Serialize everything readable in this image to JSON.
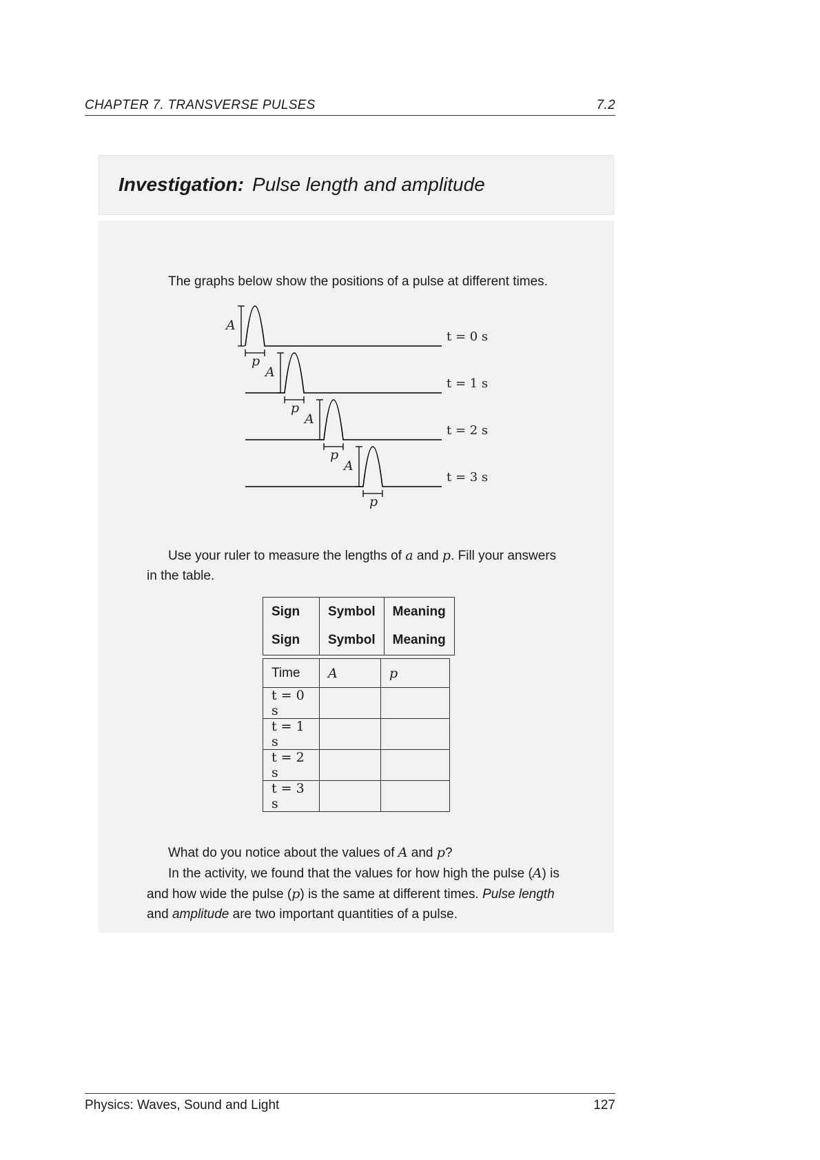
{
  "header": {
    "chapter": "CHAPTER 7.  TRANSVERSE PULSES",
    "section": "7.2"
  },
  "investigation": {
    "label": "Investigation:",
    "title": "Pulse length and amplitude",
    "intro": "The graphs below show the positions of a pulse at different times.",
    "instruction_line1_a": "Use your ruler to measure the lengths of ",
    "instruction_var_a": "a",
    "instruction_and": " and ",
    "instruction_var_p": "p",
    "instruction_line1_b": ". Fill your answers",
    "instruction_line2": "in the table.",
    "question_a": "What do you notice about the values of ",
    "question_var_A": "A",
    "question_and": " and ",
    "question_var_p": "p",
    "question_end": "?",
    "conclusion_l1_a": "In the activity, we found that the values for how high the pulse (",
    "conclusion_l1_var": "A",
    "conclusion_l1_b": ") is",
    "conclusion_l2_a": "and how wide the pulse (",
    "conclusion_l2_var": "p",
    "conclusion_l2_b": ") is the same at different times. ",
    "conclusion_l2_em": "Pulse length",
    "conclusion_l3_em": "amplitude",
    "conclusion_l3_a": "and ",
    "conclusion_l3_b": " are two important quantities of a pulse."
  },
  "figure": {
    "amplitude_label": "A",
    "length_label": "p",
    "times": [
      "t = 0 s",
      "t = 1 s",
      "t = 2 s",
      "t = 3 s"
    ]
  },
  "table": {
    "header_rows": [
      [
        "Sign",
        "Symbol",
        "Meaning"
      ],
      [
        "Sign",
        "Symbol",
        "Meaning"
      ]
    ],
    "columns": [
      "Time",
      "A",
      "p"
    ],
    "rows": [
      [
        "t = 0 s",
        "",
        ""
      ],
      [
        "t = 1 s",
        "",
        ""
      ],
      [
        "t = 2 s",
        "",
        ""
      ],
      [
        "t = 3 s",
        "",
        ""
      ]
    ]
  },
  "footer": {
    "book": "Physics: Waves, Sound and Light",
    "page": "127"
  }
}
